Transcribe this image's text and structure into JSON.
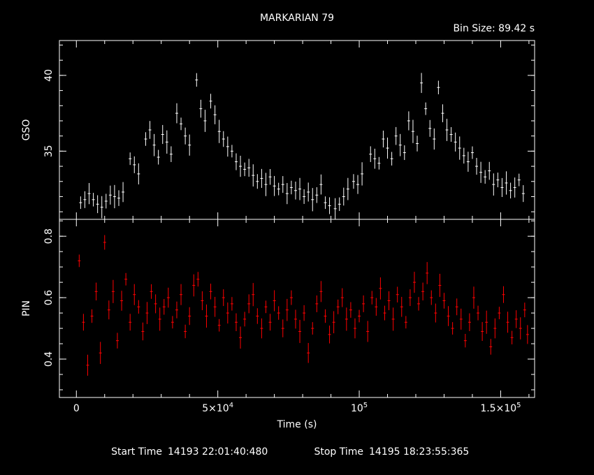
{
  "chart_data": {
    "type": "scatter",
    "title": "MARKARIAN 79",
    "bin_size": "Bin Size: 89.42 s",
    "xlabel": "Time (s)",
    "xlim": [
      -6000,
      162000
    ],
    "x_ticks": [
      {
        "value": 0,
        "label": "0",
        "sup": ""
      },
      {
        "value": 50000,
        "label": "5×10",
        "sup": "4"
      },
      {
        "value": 100000,
        "label": "10",
        "sup": "5"
      },
      {
        "value": 150000,
        "label": "1.5×10",
        "sup": "5"
      }
    ],
    "start_label": "Start Time",
    "start_value": "14193 22:01:40:480",
    "stop_label": "Stop Time",
    "stop_value": "14195 18:23:55:365",
    "panels": [
      {
        "ylabel": "GSO",
        "color": "#ffffff",
        "ylim": [
          30.5,
          42.3
        ],
        "y_ticks": [
          35,
          40
        ],
        "y_minor_step": 1,
        "series": [
          {
            "x": 1500,
            "y": 31.6
          },
          {
            "x": 3000,
            "y": 31.8
          },
          {
            "x": 4500,
            "y": 32.2
          },
          {
            "x": 6000,
            "y": 31.8
          },
          {
            "x": 7500,
            "y": 31.5
          },
          {
            "x": 9000,
            "y": 31.3
          },
          {
            "x": 10500,
            "y": 31.7
          },
          {
            "x": 12000,
            "y": 32.1
          },
          {
            "x": 13500,
            "y": 32.0
          },
          {
            "x": 15000,
            "y": 31.9
          },
          {
            "x": 16500,
            "y": 32.3
          },
          {
            "x": 19000,
            "y": 34.5
          },
          {
            "x": 20500,
            "y": 34.1
          },
          {
            "x": 22000,
            "y": 33.5
          },
          {
            "x": 24500,
            "y": 35.8
          },
          {
            "x": 26000,
            "y": 36.4
          },
          {
            "x": 27500,
            "y": 35.4
          },
          {
            "x": 29000,
            "y": 34.6
          },
          {
            "x": 30500,
            "y": 36.1
          },
          {
            "x": 32000,
            "y": 35.6
          },
          {
            "x": 33500,
            "y": 34.8
          },
          {
            "x": 35500,
            "y": 37.5
          },
          {
            "x": 37000,
            "y": 36.8
          },
          {
            "x": 38500,
            "y": 36.0
          },
          {
            "x": 40000,
            "y": 35.4
          },
          {
            "x": 42500,
            "y": 39.7
          },
          {
            "x": 44000,
            "y": 37.8
          },
          {
            "x": 45500,
            "y": 37.0
          },
          {
            "x": 47500,
            "y": 38.3
          },
          {
            "x": 49000,
            "y": 37.4
          },
          {
            "x": 50500,
            "y": 36.3
          },
          {
            "x": 52000,
            "y": 35.8
          },
          {
            "x": 53500,
            "y": 35.3
          },
          {
            "x": 55000,
            "y": 35.0
          },
          {
            "x": 56500,
            "y": 34.3
          },
          {
            "x": 58000,
            "y": 34.0
          },
          {
            "x": 59500,
            "y": 33.8
          },
          {
            "x": 61000,
            "y": 33.9
          },
          {
            "x": 62500,
            "y": 33.4
          },
          {
            "x": 64000,
            "y": 33.0
          },
          {
            "x": 65500,
            "y": 33.2
          },
          {
            "x": 67000,
            "y": 32.8
          },
          {
            "x": 68500,
            "y": 33.3
          },
          {
            "x": 70000,
            "y": 32.7
          },
          {
            "x": 71500,
            "y": 32.5
          },
          {
            "x": 73000,
            "y": 32.8
          },
          {
            "x": 74500,
            "y": 32.2
          },
          {
            "x": 76000,
            "y": 32.6
          },
          {
            "x": 77500,
            "y": 32.4
          },
          {
            "x": 79000,
            "y": 32.5
          },
          {
            "x": 80500,
            "y": 32.0
          },
          {
            "x": 82000,
            "y": 32.3
          },
          {
            "x": 83500,
            "y": 31.8
          },
          {
            "x": 85000,
            "y": 32.1
          },
          {
            "x": 86500,
            "y": 32.8
          },
          {
            "x": 88000,
            "y": 31.6
          },
          {
            "x": 89500,
            "y": 31.4
          },
          {
            "x": 91500,
            "y": 31.2
          },
          {
            "x": 93000,
            "y": 31.5
          },
          {
            "x": 94500,
            "y": 32.0
          },
          {
            "x": 96000,
            "y": 32.5
          },
          {
            "x": 98000,
            "y": 33.0
          },
          {
            "x": 99500,
            "y": 32.8
          },
          {
            "x": 101000,
            "y": 33.5
          },
          {
            "x": 104000,
            "y": 34.8
          },
          {
            "x": 105500,
            "y": 34.5
          },
          {
            "x": 107000,
            "y": 34.2
          },
          {
            "x": 108500,
            "y": 35.8
          },
          {
            "x": 110000,
            "y": 35.2
          },
          {
            "x": 111500,
            "y": 34.5
          },
          {
            "x": 113000,
            "y": 36.0
          },
          {
            "x": 114500,
            "y": 35.4
          },
          {
            "x": 116000,
            "y": 34.9
          },
          {
            "x": 117500,
            "y": 37.0
          },
          {
            "x": 119000,
            "y": 36.3
          },
          {
            "x": 120500,
            "y": 35.5
          },
          {
            "x": 122000,
            "y": 39.5
          },
          {
            "x": 123500,
            "y": 37.8
          },
          {
            "x": 125000,
            "y": 36.5
          },
          {
            "x": 126500,
            "y": 35.8
          },
          {
            "x": 128000,
            "y": 39.2
          },
          {
            "x": 129500,
            "y": 37.5
          },
          {
            "x": 131000,
            "y": 36.4
          },
          {
            "x": 132500,
            "y": 36.1
          },
          {
            "x": 134000,
            "y": 35.6
          },
          {
            "x": 135500,
            "y": 35.2
          },
          {
            "x": 137000,
            "y": 34.7
          },
          {
            "x": 138500,
            "y": 34.3
          },
          {
            "x": 140000,
            "y": 34.9
          },
          {
            "x": 141500,
            "y": 34.0
          },
          {
            "x": 143000,
            "y": 33.6
          },
          {
            "x": 144500,
            "y": 33.3
          },
          {
            "x": 146000,
            "y": 33.7
          },
          {
            "x": 147500,
            "y": 32.8
          },
          {
            "x": 149000,
            "y": 33.1
          },
          {
            "x": 150500,
            "y": 32.6
          },
          {
            "x": 152000,
            "y": 32.9
          },
          {
            "x": 153500,
            "y": 32.4
          },
          {
            "x": 155000,
            "y": 32.6
          },
          {
            "x": 156500,
            "y": 33.1
          },
          {
            "x": 158000,
            "y": 32.2
          }
        ]
      },
      {
        "ylabel": "PIN",
        "color": "#ff0000",
        "ylim": [
          0.275,
          0.855
        ],
        "y_ticks": [
          0.4,
          0.6,
          0.8
        ],
        "y_minor_step": 0.05,
        "series": [
          {
            "x": 1000,
            "y": 0.72
          },
          {
            "x": 2500,
            "y": 0.52
          },
          {
            "x": 4000,
            "y": 0.38
          },
          {
            "x": 5500,
            "y": 0.54
          },
          {
            "x": 7000,
            "y": 0.62
          },
          {
            "x": 8500,
            "y": 0.42
          },
          {
            "x": 10000,
            "y": 0.78
          },
          {
            "x": 11500,
            "y": 0.56
          },
          {
            "x": 13000,
            "y": 0.62
          },
          {
            "x": 14500,
            "y": 0.46
          },
          {
            "x": 16000,
            "y": 0.59
          },
          {
            "x": 17500,
            "y": 0.66
          },
          {
            "x": 19000,
            "y": 0.52
          },
          {
            "x": 20500,
            "y": 0.61
          },
          {
            "x": 22000,
            "y": 0.57
          },
          {
            "x": 23500,
            "y": 0.49
          },
          {
            "x": 25000,
            "y": 0.55
          },
          {
            "x": 26500,
            "y": 0.62
          },
          {
            "x": 28000,
            "y": 0.58
          },
          {
            "x": 29500,
            "y": 0.53
          },
          {
            "x": 31000,
            "y": 0.57
          },
          {
            "x": 32500,
            "y": 0.6
          },
          {
            "x": 34000,
            "y": 0.52
          },
          {
            "x": 35500,
            "y": 0.56
          },
          {
            "x": 37000,
            "y": 0.61
          },
          {
            "x": 38500,
            "y": 0.49
          },
          {
            "x": 40000,
            "y": 0.54
          },
          {
            "x": 41500,
            "y": 0.64
          },
          {
            "x": 43000,
            "y": 0.66
          },
          {
            "x": 44500,
            "y": 0.59
          },
          {
            "x": 46000,
            "y": 0.54
          },
          {
            "x": 47500,
            "y": 0.62
          },
          {
            "x": 49000,
            "y": 0.57
          },
          {
            "x": 50500,
            "y": 0.51
          },
          {
            "x": 52000,
            "y": 0.6
          },
          {
            "x": 53500,
            "y": 0.55
          },
          {
            "x": 55000,
            "y": 0.58
          },
          {
            "x": 56500,
            "y": 0.52
          },
          {
            "x": 58000,
            "y": 0.47
          },
          {
            "x": 59500,
            "y": 0.53
          },
          {
            "x": 61000,
            "y": 0.58
          },
          {
            "x": 62500,
            "y": 0.61
          },
          {
            "x": 64000,
            "y": 0.54
          },
          {
            "x": 65500,
            "y": 0.5
          },
          {
            "x": 67000,
            "y": 0.57
          },
          {
            "x": 68500,
            "y": 0.52
          },
          {
            "x": 70000,
            "y": 0.59
          },
          {
            "x": 71500,
            "y": 0.55
          },
          {
            "x": 73000,
            "y": 0.5
          },
          {
            "x": 74500,
            "y": 0.56
          },
          {
            "x": 76000,
            "y": 0.6
          },
          {
            "x": 77500,
            "y": 0.53
          },
          {
            "x": 79000,
            "y": 0.49
          },
          {
            "x": 80500,
            "y": 0.55
          },
          {
            "x": 82000,
            "y": 0.42
          },
          {
            "x": 83500,
            "y": 0.5
          },
          {
            "x": 85000,
            "y": 0.58
          },
          {
            "x": 86500,
            "y": 0.62
          },
          {
            "x": 88000,
            "y": 0.54
          },
          {
            "x": 89500,
            "y": 0.48
          },
          {
            "x": 91000,
            "y": 0.52
          },
          {
            "x": 92500,
            "y": 0.57
          },
          {
            "x": 94000,
            "y": 0.6
          },
          {
            "x": 95500,
            "y": 0.53
          },
          {
            "x": 97000,
            "y": 0.56
          },
          {
            "x": 98500,
            "y": 0.5
          },
          {
            "x": 100000,
            "y": 0.54
          },
          {
            "x": 101500,
            "y": 0.58
          },
          {
            "x": 103000,
            "y": 0.49
          },
          {
            "x": 104500,
            "y": 0.6
          },
          {
            "x": 106000,
            "y": 0.57
          },
          {
            "x": 107500,
            "y": 0.63
          },
          {
            "x": 109000,
            "y": 0.55
          },
          {
            "x": 110500,
            "y": 0.59
          },
          {
            "x": 112000,
            "y": 0.53
          },
          {
            "x": 113500,
            "y": 0.61
          },
          {
            "x": 115000,
            "y": 0.57
          },
          {
            "x": 116500,
            "y": 0.52
          },
          {
            "x": 118000,
            "y": 0.6
          },
          {
            "x": 119500,
            "y": 0.65
          },
          {
            "x": 121000,
            "y": 0.58
          },
          {
            "x": 122500,
            "y": 0.62
          },
          {
            "x": 124000,
            "y": 0.68
          },
          {
            "x": 125500,
            "y": 0.6
          },
          {
            "x": 127000,
            "y": 0.55
          },
          {
            "x": 128500,
            "y": 0.64
          },
          {
            "x": 130000,
            "y": 0.59
          },
          {
            "x": 131500,
            "y": 0.54
          },
          {
            "x": 133000,
            "y": 0.5
          },
          {
            "x": 134500,
            "y": 0.57
          },
          {
            "x": 136000,
            "y": 0.53
          },
          {
            "x": 137500,
            "y": 0.46
          },
          {
            "x": 139000,
            "y": 0.52
          },
          {
            "x": 140500,
            "y": 0.6
          },
          {
            "x": 142000,
            "y": 0.55
          },
          {
            "x": 143500,
            "y": 0.49
          },
          {
            "x": 145000,
            "y": 0.52
          },
          {
            "x": 146500,
            "y": 0.44
          },
          {
            "x": 148000,
            "y": 0.5
          },
          {
            "x": 149500,
            "y": 0.55
          },
          {
            "x": 151000,
            "y": 0.61
          },
          {
            "x": 152500,
            "y": 0.52
          },
          {
            "x": 154000,
            "y": 0.47
          },
          {
            "x": 155500,
            "y": 0.53
          },
          {
            "x": 157000,
            "y": 0.5
          },
          {
            "x": 158500,
            "y": 0.56
          },
          {
            "x": 159500,
            "y": 0.48
          }
        ]
      }
    ]
  }
}
